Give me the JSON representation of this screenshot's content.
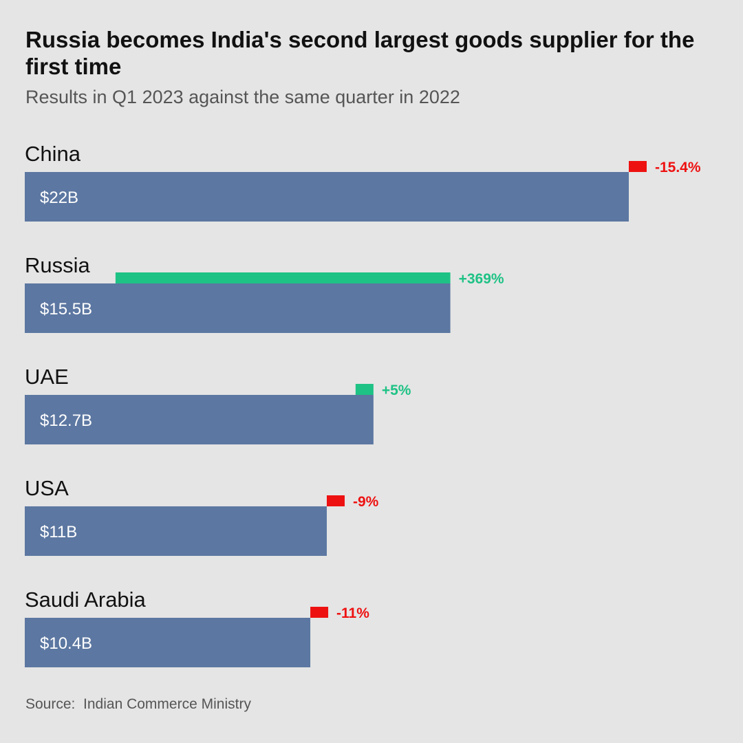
{
  "title": "Russia becomes India's second largest goods supplier for the first time",
  "subtitle": "Results in Q1 2023 against the same quarter in 2022",
  "source": "Source:  Indian Commerce Ministry",
  "colors": {
    "bar": "#5c77a1",
    "increase": "#1ec285",
    "decrease": "#ee1111",
    "bar_text": "#ffffff",
    "label": "#111111"
  },
  "chart_data": {
    "type": "bar",
    "orientation": "horizontal",
    "title": "Russia becomes India's second largest goods supplier for the first time",
    "subtitle": "Results in Q1 2023 against the same quarter in 2022",
    "unit": "USD billions",
    "categories": [
      "China",
      "Russia",
      "UAE",
      "USA",
      "Saudi Arabia"
    ],
    "values": [
      22,
      15.5,
      12.7,
      11,
      10.4
    ],
    "value_labels": [
      "$22B",
      "$15.5B",
      "$12.7B",
      "$11B",
      "$10.4B"
    ],
    "change_pct": [
      -15.4,
      369,
      5,
      -9,
      -11
    ],
    "change_labels": [
      "-15.4%",
      "+369%",
      "+5%",
      "-9%",
      "-11%"
    ],
    "xlim": [
      0,
      22
    ],
    "grid": false,
    "legend": "none"
  }
}
